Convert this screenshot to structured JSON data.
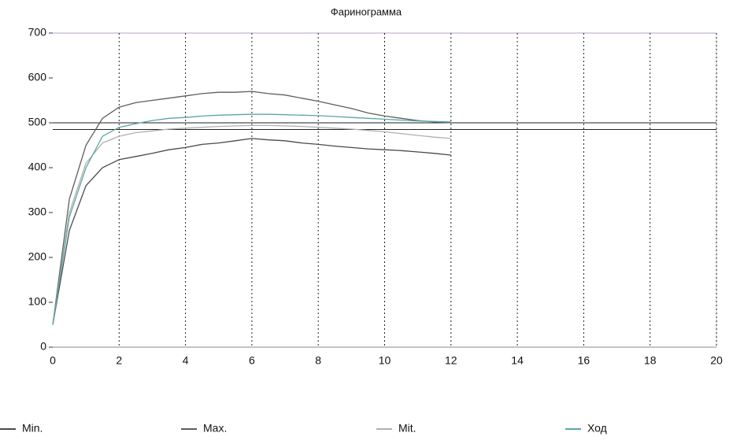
{
  "chart_data": {
    "type": "line",
    "title": "Фаринограмма",
    "x": [
      0,
      0.5,
      1,
      1.5,
      2,
      2.5,
      3,
      3.5,
      4,
      4.5,
      5,
      5.5,
      6,
      6.5,
      7,
      7.5,
      8,
      8.5,
      9,
      9.5,
      10,
      10.5,
      11,
      11.5,
      12
    ],
    "series": [
      {
        "name": "Min.",
        "color": "#4a4a4a",
        "values": [
          50,
          260,
          360,
          400,
          418,
          425,
          432,
          440,
          445,
          452,
          455,
          460,
          465,
          462,
          460,
          455,
          452,
          448,
          445,
          442,
          440,
          438,
          435,
          432,
          428
        ]
      },
      {
        "name": "Max.",
        "color": "#5e5e5e",
        "values": [
          50,
          330,
          450,
          510,
          535,
          545,
          550,
          555,
          560,
          565,
          568,
          568,
          570,
          565,
          562,
          555,
          548,
          540,
          532,
          522,
          515,
          510,
          505,
          502,
          500
        ]
      },
      {
        "name": "Mit.",
        "color": "#b0b0b0",
        "values": [
          50,
          300,
          410,
          455,
          470,
          478,
          482,
          486,
          488,
          490,
          492,
          493,
          494,
          494,
          493,
          492,
          490,
          488,
          486,
          483,
          480,
          476,
          472,
          468,
          465
        ]
      },
      {
        "name": "Ход",
        "color": "#5aa6a6",
        "values": [
          50,
          290,
          400,
          470,
          490,
          498,
          505,
          510,
          512,
          515,
          517,
          518,
          519,
          519,
          518,
          517,
          516,
          514,
          512,
          510,
          508,
          506,
          504,
          503,
          502
        ]
      }
    ],
    "hlines": [
      500,
      485
    ],
    "xlim": [
      0,
      20
    ],
    "xticks": [
      0,
      2,
      4,
      6,
      8,
      10,
      12,
      14,
      16,
      18,
      20
    ],
    "ylim": [
      0,
      700
    ],
    "yticks": [
      0,
      100,
      200,
      300,
      400,
      500,
      600,
      700
    ],
    "grid": true
  }
}
